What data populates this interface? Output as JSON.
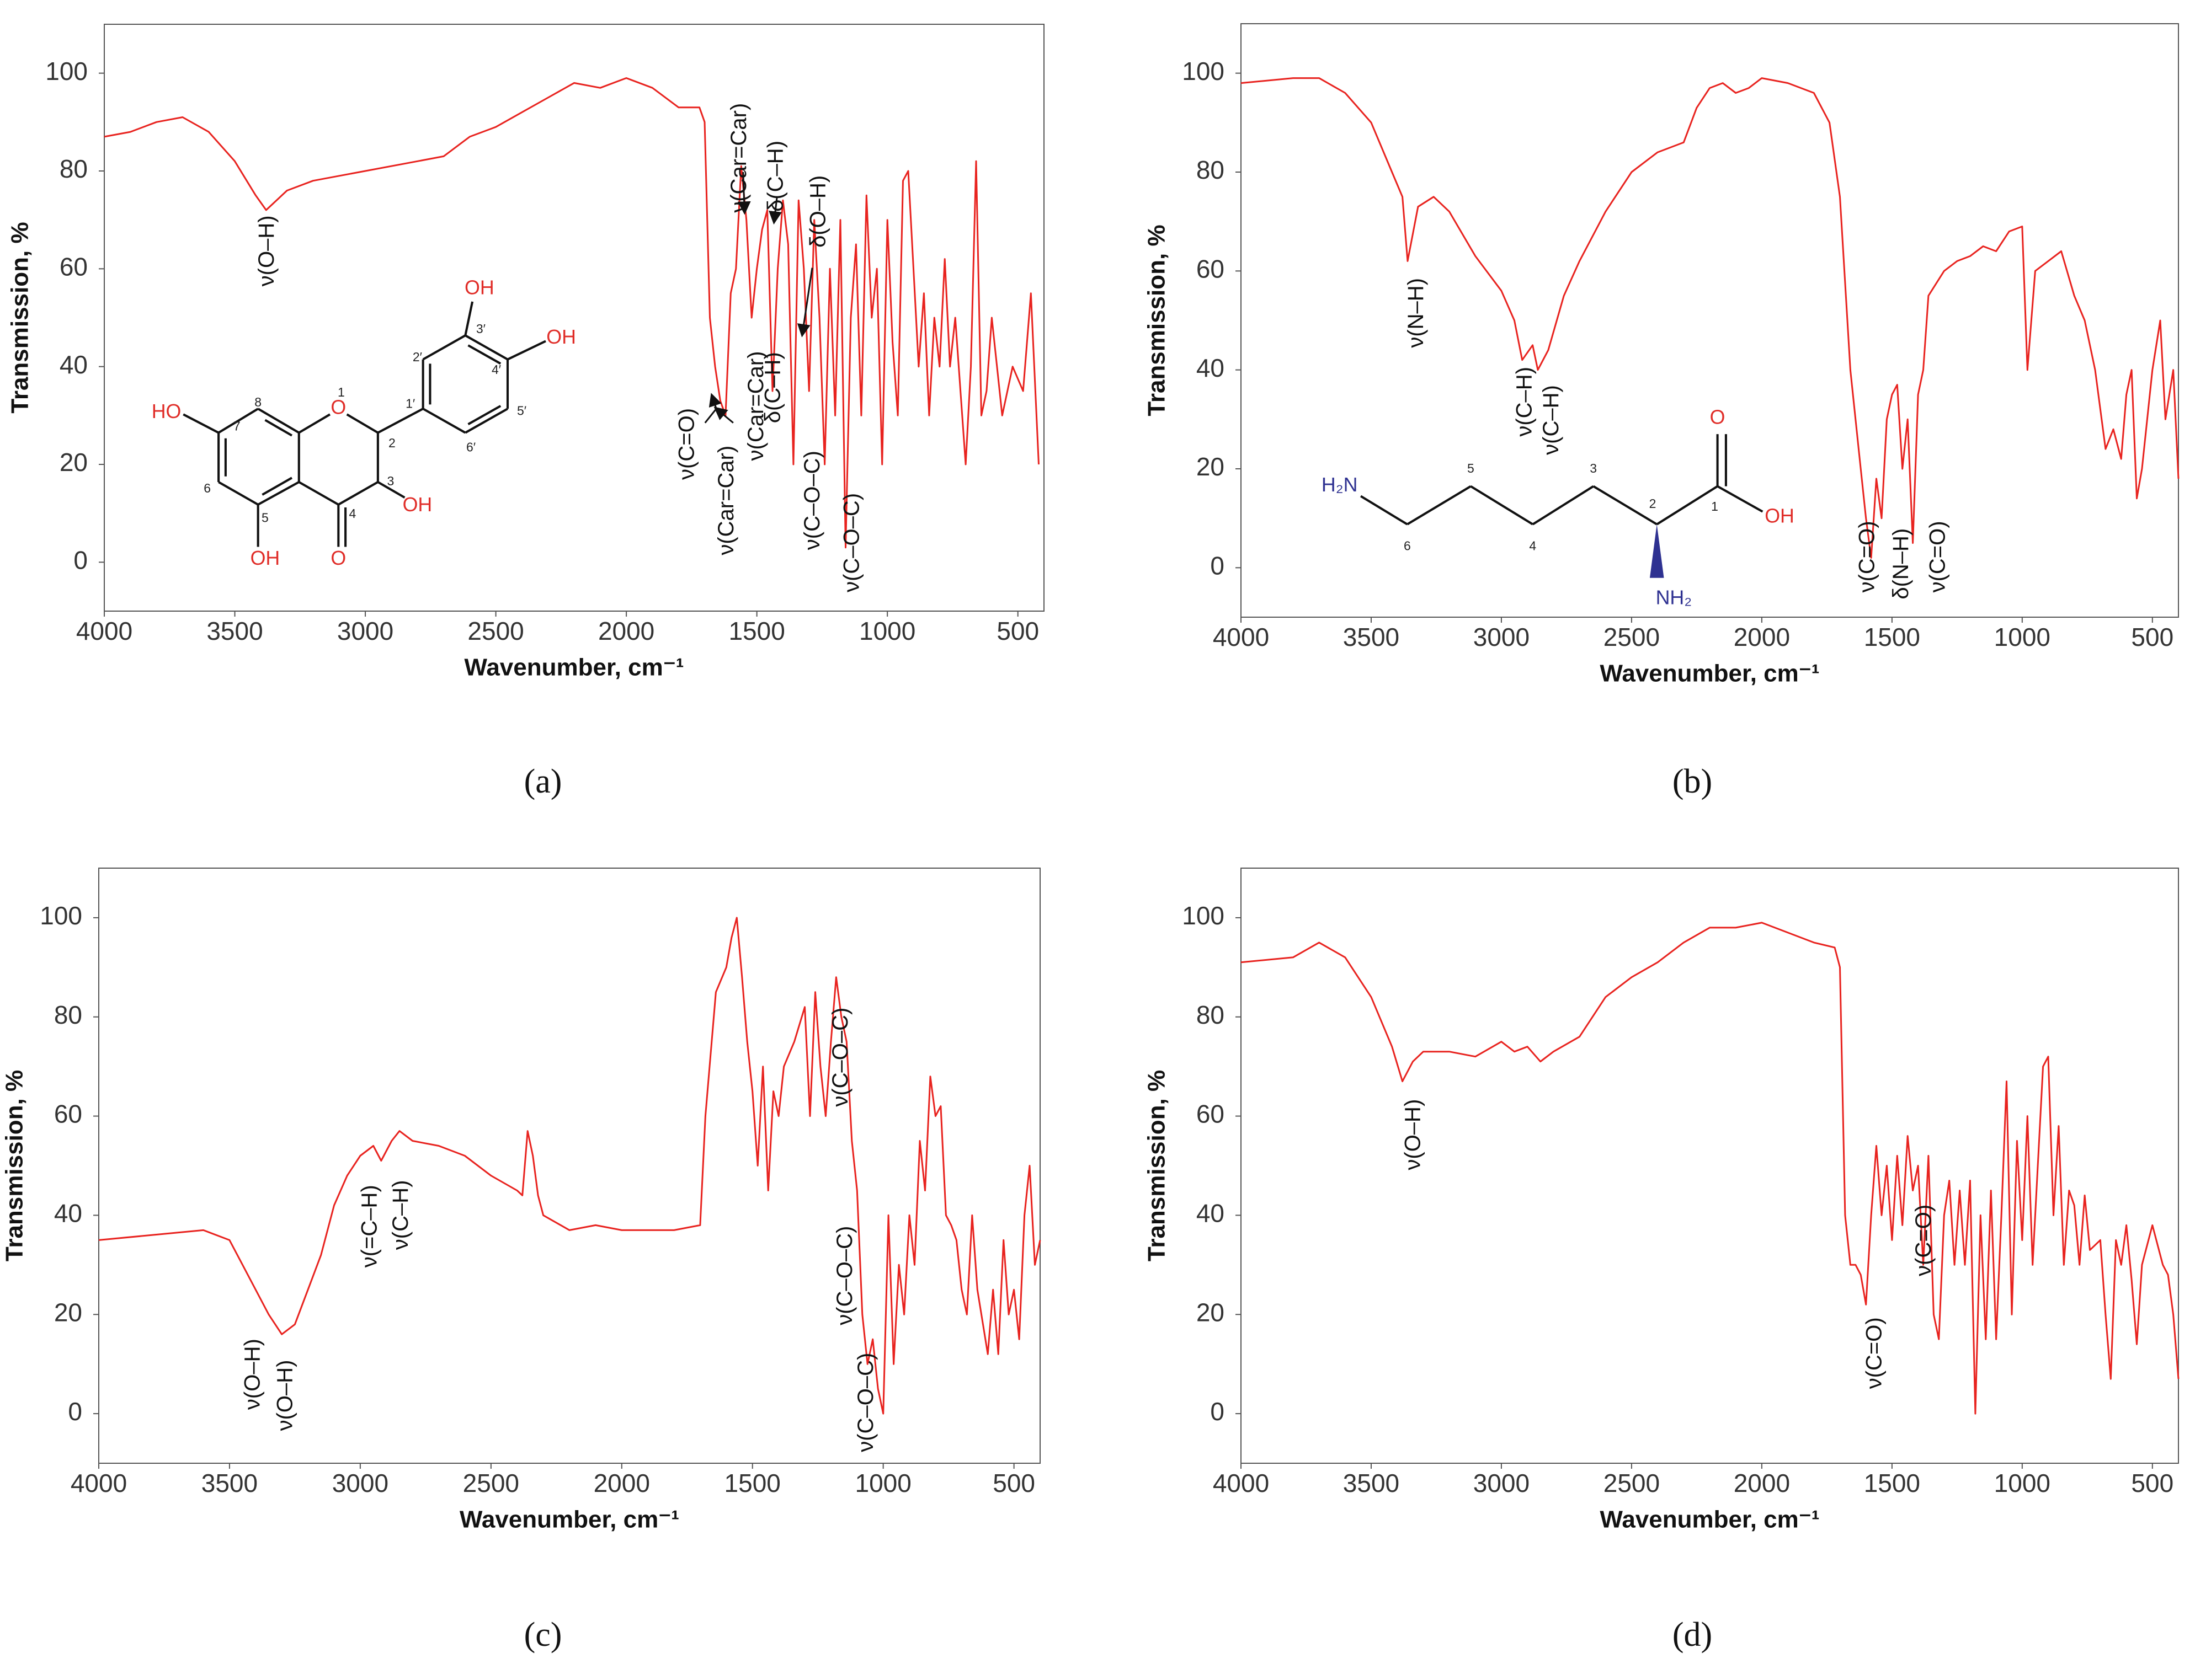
{
  "chart_data": [
    {
      "type": "line",
      "panel_label": "(a)",
      "x_label": "Wavenumber, cm⁻¹",
      "y_label": "Transmission, %",
      "color": "#e8231f",
      "xlim": [
        4000,
        400
      ],
      "ylim": [
        -10,
        110
      ],
      "xticks": [
        4000,
        3500,
        3000,
        2500,
        2000,
        1500,
        1000,
        500
      ],
      "yticks": [
        0,
        20,
        40,
        60,
        80,
        100
      ],
      "x": [
        4000,
        3900,
        3800,
        3700,
        3600,
        3500,
        3420,
        3380,
        3300,
        3200,
        3000,
        2800,
        2700,
        2600,
        2500,
        2400,
        2300,
        2200,
        2100,
        2000,
        1900,
        1800,
        1720,
        1700,
        1680,
        1660,
        1640,
        1620,
        1600,
        1580,
        1560,
        1540,
        1520,
        1500,
        1480,
        1460,
        1440,
        1420,
        1400,
        1380,
        1360,
        1340,
        1320,
        1300,
        1280,
        1260,
        1240,
        1220,
        1200,
        1180,
        1160,
        1140,
        1120,
        1100,
        1080,
        1060,
        1040,
        1020,
        1000,
        980,
        960,
        940,
        920,
        900,
        880,
        860,
        840,
        820,
        800,
        780,
        760,
        740,
        700,
        680,
        660,
        640,
        620,
        600,
        560,
        520,
        480,
        450,
        420
      ],
      "values": [
        87,
        88,
        90,
        91,
        88,
        82,
        75,
        72,
        76,
        78,
        80,
        82,
        83,
        87,
        89,
        92,
        95,
        98,
        97,
        99,
        97,
        93,
        93,
        90,
        50,
        40,
        33,
        30,
        55,
        60,
        81,
        70,
        50,
        60,
        68,
        72,
        35,
        60,
        74,
        65,
        20,
        74,
        60,
        35,
        70,
        50,
        20,
        60,
        30,
        70,
        3,
        50,
        65,
        30,
        75,
        50,
        60,
        20,
        70,
        45,
        30,
        78,
        80,
        60,
        40,
        55,
        30,
        50,
        40,
        62,
        40,
        50,
        20,
        40,
        82,
        30,
        35,
        50,
        30,
        40,
        35,
        55,
        20
      ],
      "annotations": [
        "ν(O–H)",
        "ν(C=O)",
        "ν(Car=Car)",
        "ν(Car=Car)",
        "δ(C–H)",
        "δ(O–H)",
        "ν(Car=Car)",
        "δ(C–H)",
        "ν(C–O–C)",
        "ν(C–O–C)"
      ],
      "structure": [
        "HO",
        "OH",
        "OH",
        "O",
        "OH",
        "O",
        "OH",
        "1",
        "2",
        "3",
        "4",
        "5",
        "6",
        "7",
        "8",
        "1′",
        "2′",
        "3′",
        "4′",
        "5′",
        "6′"
      ]
    },
    {
      "type": "line",
      "panel_label": "(b)",
      "x_label": "Wavenumber, cm⁻¹",
      "y_label": "Transmission, %",
      "color": "#e8231f",
      "xlim": [
        4000,
        400
      ],
      "ylim": [
        -10,
        110
      ],
      "xticks": [
        4000,
        3500,
        3000,
        2500,
        2000,
        1500,
        1000,
        500
      ],
      "yticks": [
        0,
        20,
        40,
        60,
        80,
        100
      ],
      "x": [
        4000,
        3800,
        3700,
        3600,
        3500,
        3420,
        3380,
        3360,
        3320,
        3260,
        3200,
        3100,
        3000,
        2950,
        2920,
        2880,
        2860,
        2820,
        2760,
        2700,
        2600,
        2500,
        2400,
        2300,
        2250,
        2200,
        2150,
        2100,
        2050,
        2000,
        1900,
        1800,
        1740,
        1700,
        1660,
        1620,
        1600,
        1580,
        1560,
        1540,
        1520,
        1500,
        1480,
        1460,
        1440,
        1420,
        1400,
        1380,
        1360,
        1300,
        1250,
        1200,
        1150,
        1100,
        1050,
        1000,
        980,
        950,
        900,
        850,
        800,
        760,
        720,
        680,
        650,
        620,
        600,
        580,
        560,
        540,
        500,
        470,
        450,
        420,
        400
      ],
      "values": [
        98,
        99,
        99,
        96,
        90,
        80,
        75,
        62,
        73,
        75,
        72,
        63,
        56,
        50,
        42,
        45,
        40,
        44,
        55,
        62,
        72,
        80,
        84,
        86,
        93,
        97,
        98,
        96,
        97,
        99,
        98,
        96,
        90,
        75,
        40,
        20,
        10,
        2,
        18,
        10,
        30,
        35,
        37,
        20,
        30,
        5,
        35,
        40,
        55,
        60,
        62,
        63,
        65,
        64,
        68,
        69,
        40,
        60,
        62,
        64,
        55,
        50,
        40,
        24,
        28,
        22,
        35,
        40,
        14,
        20,
        40,
        50,
        30,
        40,
        18
      ],
      "annotations": [
        "ν(N–H)",
        "ν(C–H)",
        "ν(C–H)",
        "ν(C=O)",
        "δ(N–H)",
        "ν(C=O)"
      ],
      "structure": [
        "H₂N",
        "O",
        "OH",
        "NH₂",
        "6",
        "5",
        "4",
        "3",
        "2",
        "1"
      ]
    },
    {
      "type": "line",
      "panel_label": "(c)",
      "x_label": "Wavenumber, cm⁻¹",
      "y_label": "Transmission, %",
      "color": "#e8231f",
      "xlim": [
        4000,
        400
      ],
      "ylim": [
        -10,
        110
      ],
      "xticks": [
        4000,
        3500,
        3000,
        2500,
        2000,
        1500,
        1000,
        500
      ],
      "yticks": [
        0,
        20,
        40,
        60,
        80,
        100
      ],
      "x": [
        4000,
        3800,
        3600,
        3500,
        3450,
        3400,
        3350,
        3300,
        3250,
        3200,
        3150,
        3100,
        3050,
        3000,
        2950,
        2920,
        2880,
        2850,
        2800,
        2700,
        2600,
        2500,
        2400,
        2380,
        2360,
        2340,
        2320,
        2300,
        2200,
        2100,
        2000,
        1900,
        1800,
        1700,
        1680,
        1640,
        1600,
        1580,
        1560,
        1540,
        1520,
        1500,
        1480,
        1460,
        1440,
        1420,
        1400,
        1380,
        1340,
        1300,
        1280,
        1260,
        1240,
        1220,
        1200,
        1180,
        1160,
        1140,
        1120,
        1100,
        1080,
        1060,
        1040,
        1020,
        1000,
        980,
        960,
        940,
        920,
        900,
        880,
        860,
        840,
        820,
        800,
        780,
        760,
        740,
        720,
        700,
        680,
        660,
        640,
        600,
        580,
        560,
        540,
        520,
        500,
        480,
        460,
        440,
        420,
        400
      ],
      "values": [
        35,
        36,
        37,
        35,
        30,
        25,
        20,
        16,
        18,
        25,
        32,
        42,
        48,
        52,
        54,
        51,
        55,
        57,
        55,
        54,
        52,
        48,
        45,
        44,
        57,
        52,
        44,
        40,
        37,
        38,
        37,
        37,
        37,
        38,
        60,
        85,
        90,
        96,
        100,
        88,
        75,
        65,
        50,
        70,
        45,
        65,
        60,
        70,
        75,
        82,
        60,
        85,
        70,
        60,
        75,
        88,
        80,
        75,
        55,
        45,
        20,
        10,
        15,
        5,
        0,
        40,
        10,
        30,
        20,
        40,
        30,
        55,
        45,
        68,
        60,
        62,
        40,
        38,
        35,
        25,
        20,
        40,
        25,
        12,
        25,
        12,
        35,
        20,
        25,
        15,
        40,
        50,
        30,
        35
      ],
      "annotations": [
        "ν(O–H)",
        "ν(O–H)",
        "ν(=C–H)",
        "ν(C–H)",
        "ν(C–O–C)",
        "ν(C–O–C)",
        "ν(C–O–C)"
      ]
    },
    {
      "type": "line",
      "panel_label": "(d)",
      "x_label": "Wavenumber, cm⁻¹",
      "y_label": "Transmission, %",
      "color": "#e8231f",
      "xlim": [
        4000,
        400
      ],
      "ylim": [
        -10,
        110
      ],
      "xticks": [
        4000,
        3500,
        3000,
        2500,
        2000,
        1500,
        1000,
        500
      ],
      "yticks": [
        0,
        20,
        40,
        60,
        80,
        100
      ],
      "x": [
        4000,
        3800,
        3700,
        3600,
        3500,
        3420,
        3380,
        3340,
        3300,
        3200,
        3100,
        3000,
        2950,
        2900,
        2850,
        2800,
        2700,
        2600,
        2500,
        2400,
        2300,
        2200,
        2100,
        2000,
        1900,
        1800,
        1720,
        1700,
        1680,
        1660,
        1640,
        1620,
        1600,
        1580,
        1560,
        1540,
        1520,
        1500,
        1480,
        1460,
        1440,
        1420,
        1400,
        1380,
        1360,
        1340,
        1320,
        1300,
        1280,
        1260,
        1240,
        1220,
        1200,
        1180,
        1160,
        1140,
        1120,
        1100,
        1080,
        1060,
        1040,
        1020,
        1000,
        980,
        960,
        940,
        920,
        900,
        880,
        860,
        840,
        820,
        800,
        780,
        760,
        740,
        700,
        680,
        660,
        640,
        620,
        600,
        580,
        560,
        540,
        500,
        460,
        440,
        420,
        400
      ],
      "values": [
        91,
        92,
        95,
        92,
        84,
        74,
        67,
        71,
        73,
        73,
        72,
        75,
        73,
        74,
        71,
        73,
        76,
        84,
        88,
        91,
        95,
        98,
        98,
        99,
        97,
        95,
        94,
        90,
        40,
        30,
        30,
        28,
        22,
        40,
        54,
        40,
        50,
        35,
        52,
        38,
        56,
        45,
        50,
        30,
        52,
        20,
        15,
        40,
        47,
        30,
        45,
        30,
        47,
        0,
        40,
        15,
        45,
        15,
        40,
        67,
        20,
        55,
        35,
        60,
        30,
        50,
        70,
        72,
        40,
        58,
        30,
        45,
        42,
        30,
        44,
        33,
        35,
        20,
        7,
        35,
        30,
        38,
        27,
        14,
        30,
        38,
        30,
        28,
        20,
        7
      ],
      "annotations": [
        "ν(O–H)",
        "ν(C=O)",
        "ν(C=O)"
      ]
    }
  ]
}
